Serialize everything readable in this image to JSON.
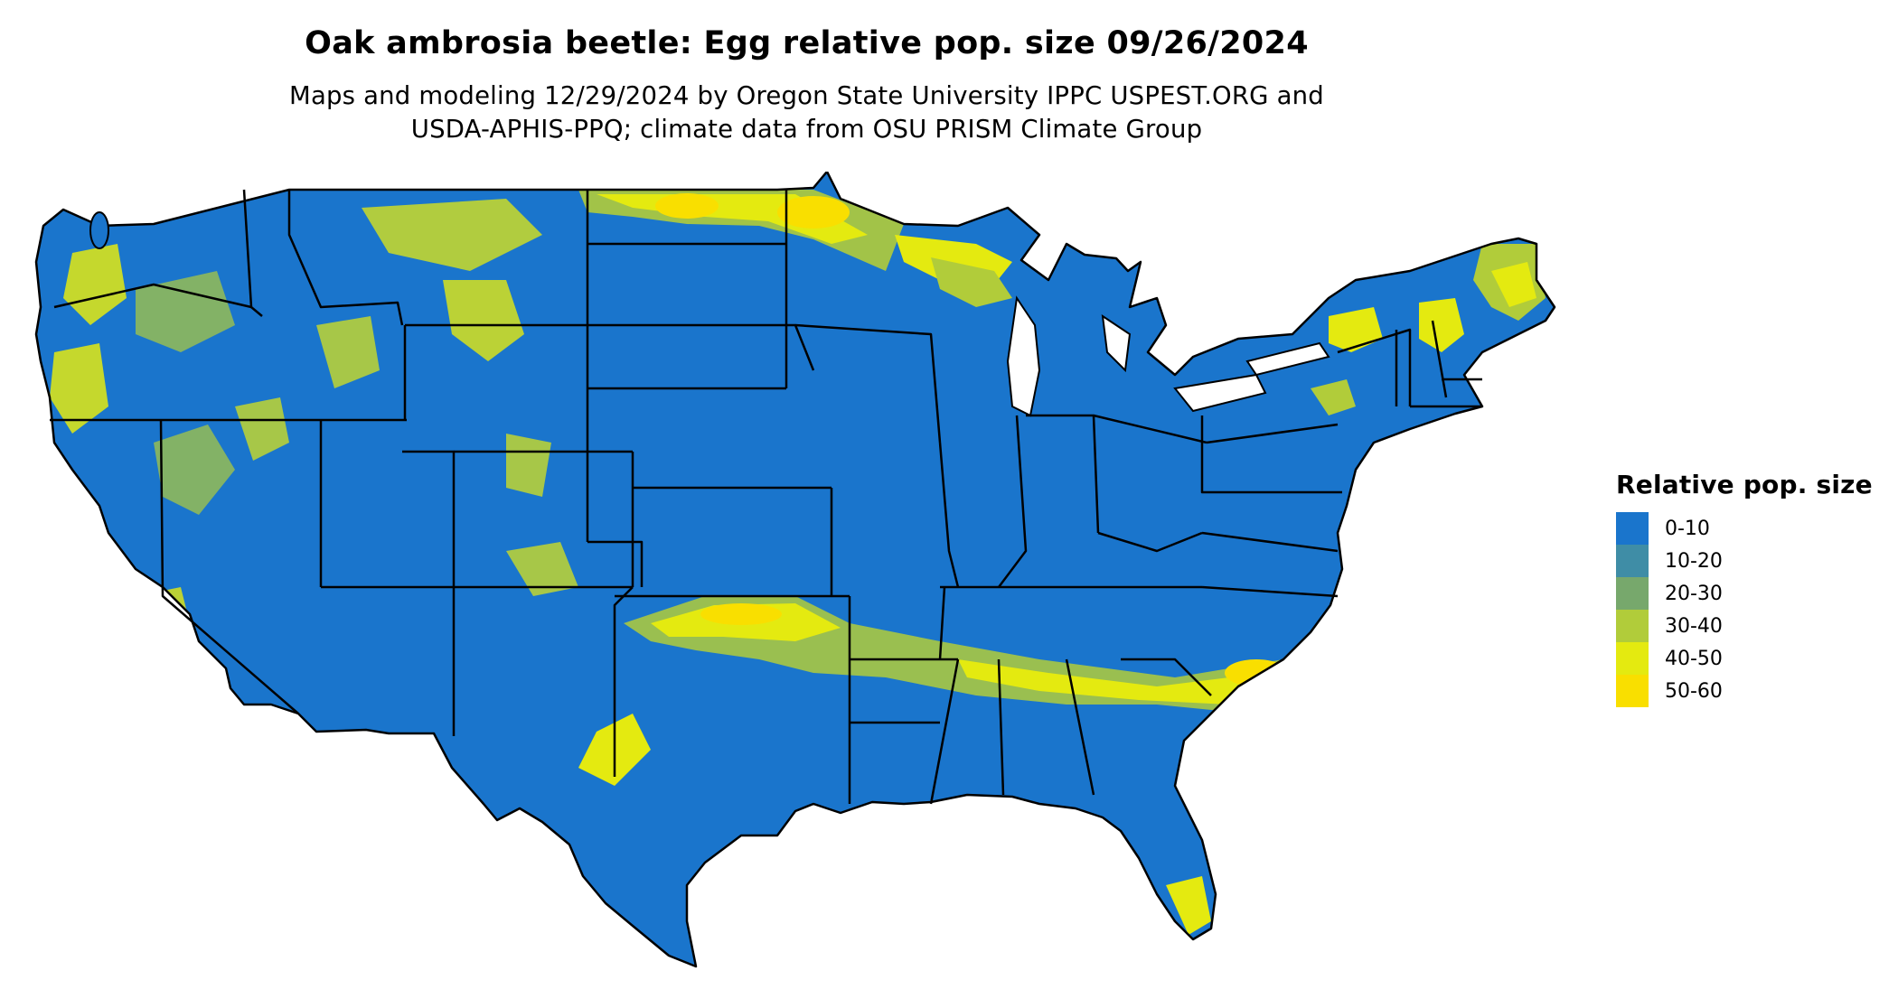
{
  "title": "Oak ambrosia beetle: Egg relative pop. size 09/26/2024",
  "subtitle_lines": [
    "Maps and modeling 12/29/2024 by Oregon State University IPPC USPEST.ORG and",
    "USDA-APHIS-PPQ; climate data from OSU PRISM Climate Group"
  ],
  "legend": {
    "title": "Relative pop. size",
    "items": [
      {
        "label": "0-10",
        "color": "#1a75cc"
      },
      {
        "label": "10-20",
        "color": "#3f8da6"
      },
      {
        "label": "20-30",
        "color": "#77a86c"
      },
      {
        "label": "30-40",
        "color": "#b1cc3a"
      },
      {
        "label": "40-50",
        "color": "#e4ea10"
      },
      {
        "label": "50-60",
        "color": "#f9df00"
      }
    ]
  },
  "map": {
    "base_color": "#1a75cc",
    "border_color": "#000000",
    "icons": {
      "region": "contiguous-us-map"
    }
  }
}
